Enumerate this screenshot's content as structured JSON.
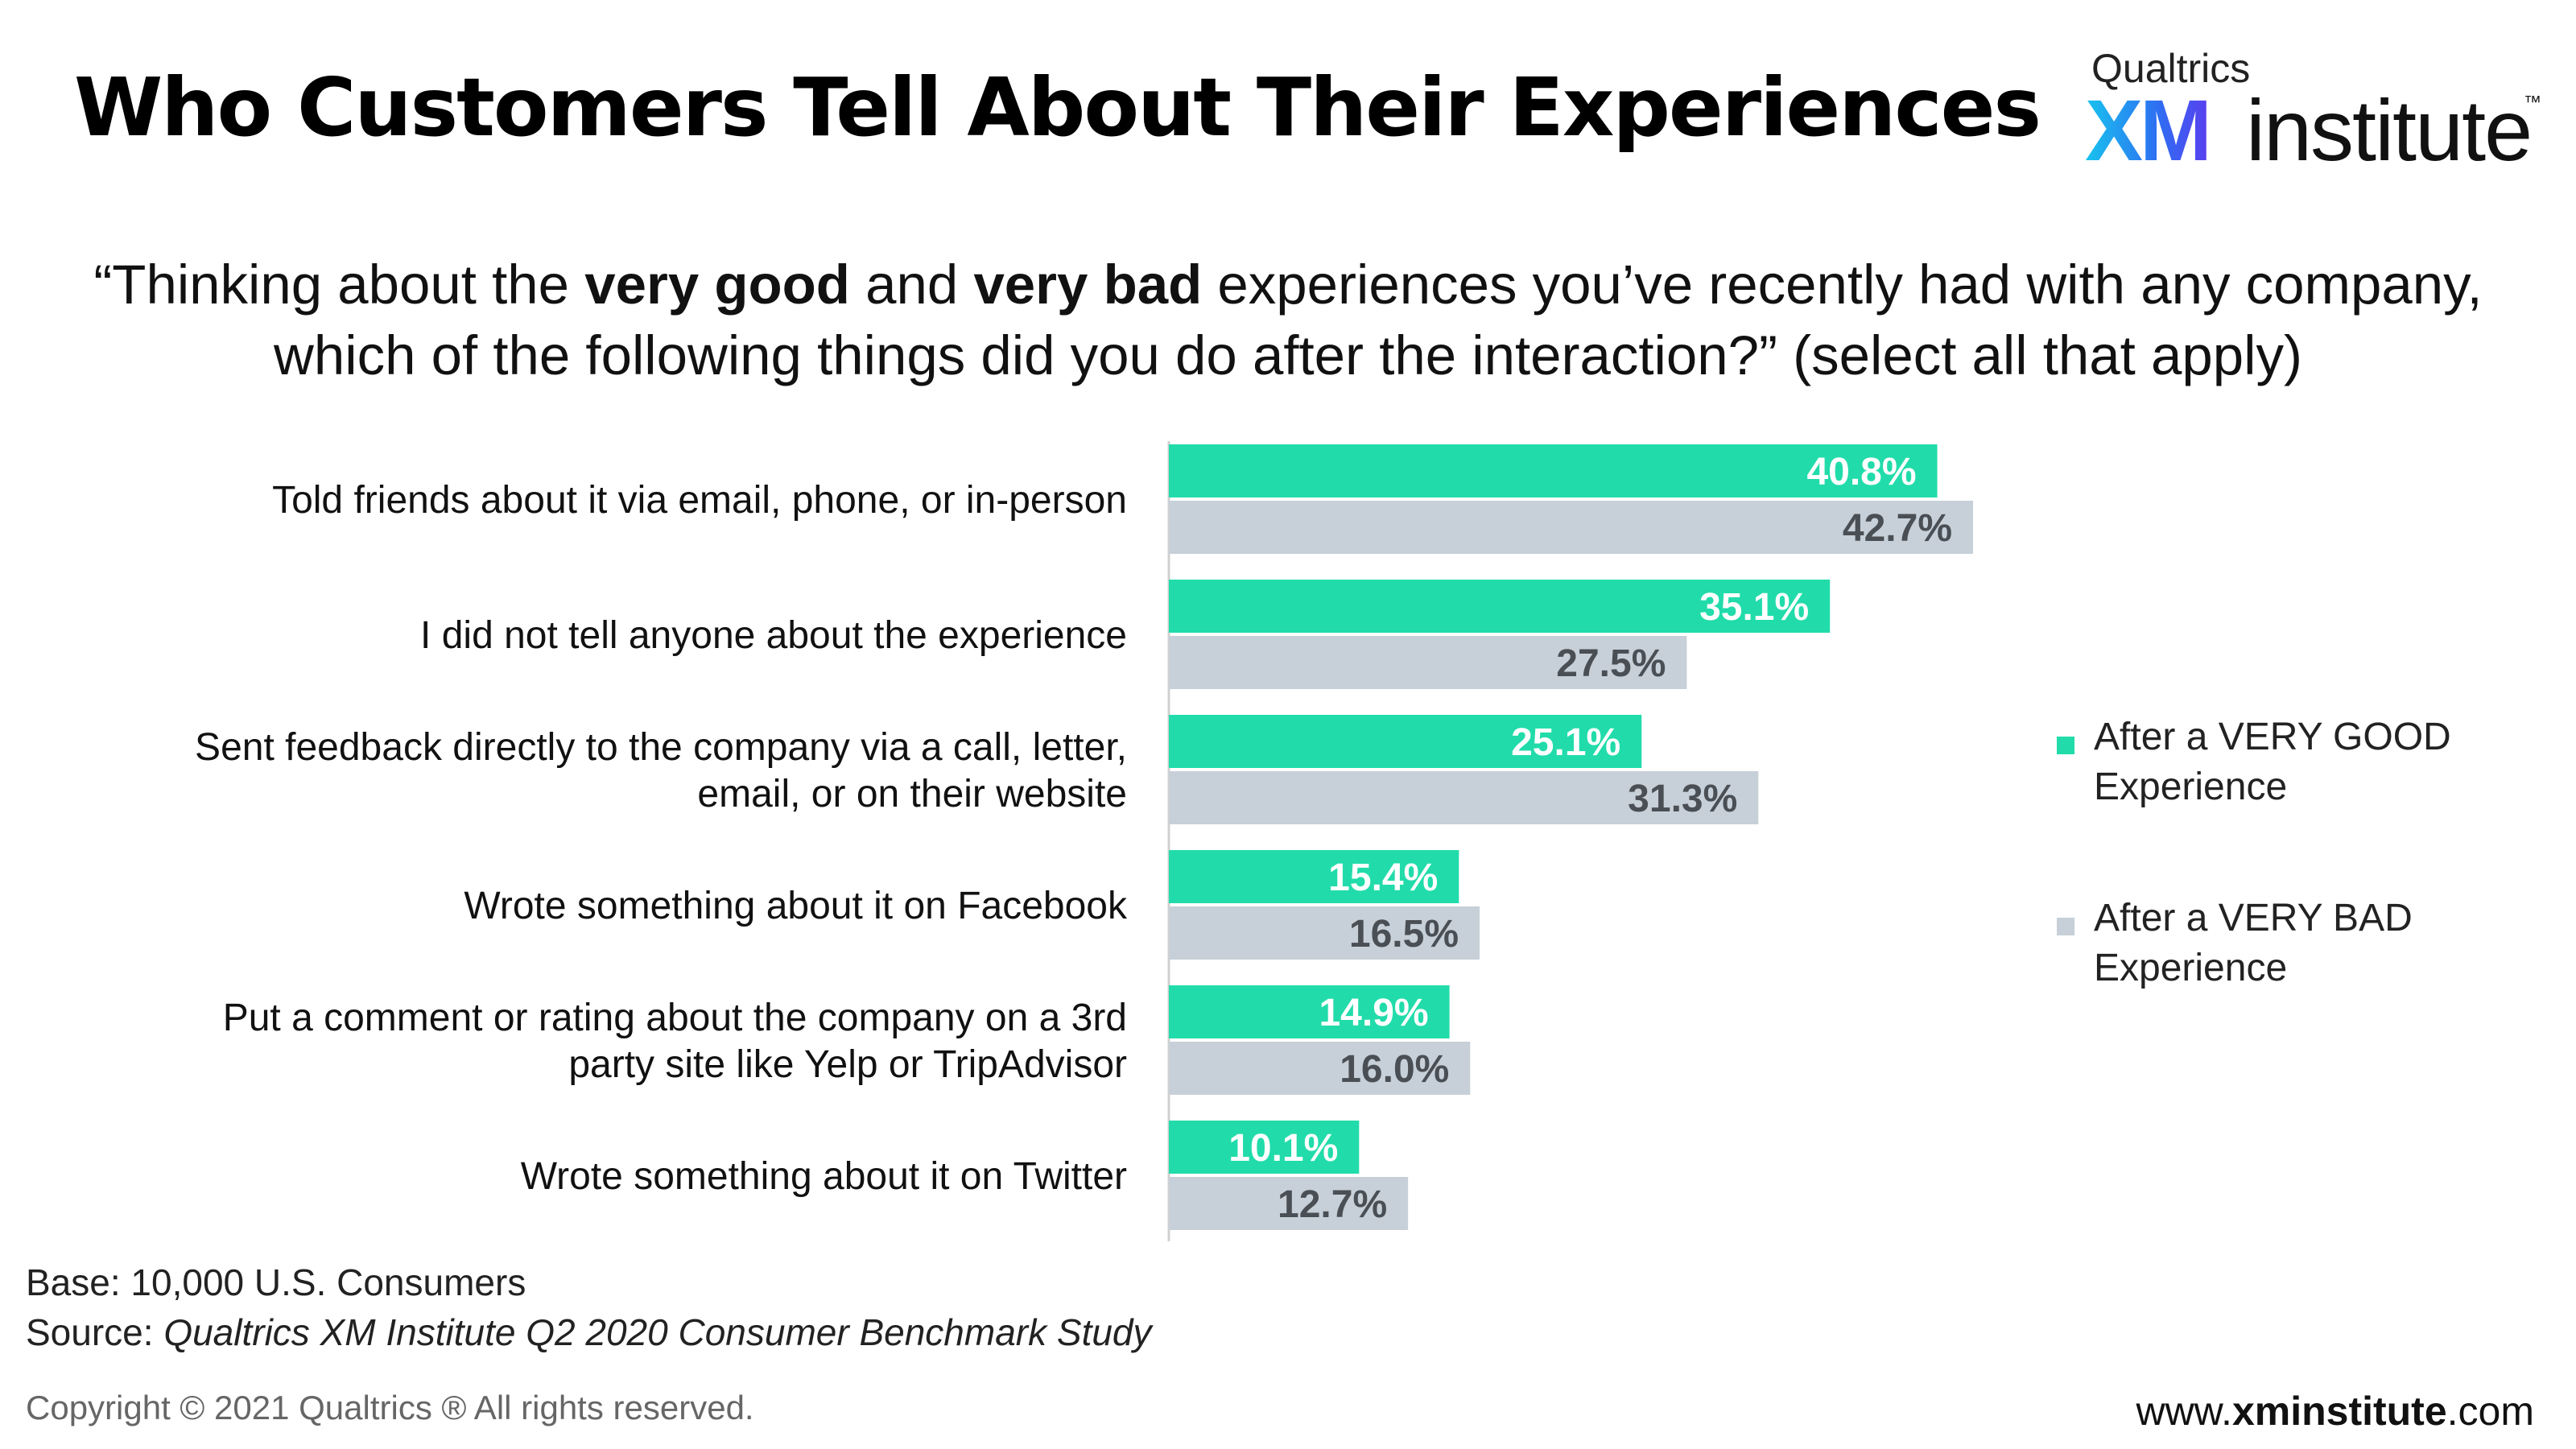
{
  "header": {
    "title": "Who Customers Tell About Their Experiences",
    "logo": {
      "brand_small": "Qualtrics",
      "brand_xm": "XM",
      "brand_institute": "institute",
      "tm": "™"
    }
  },
  "question": {
    "open": "“Thinking about the ",
    "bold1": "very good",
    "mid1": " and ",
    "bold2": "very bad",
    "rest": " experiences you’ve recently had with any company, which of the following things did you do after the interaction?” (select all that apply)"
  },
  "chart_data": {
    "type": "bar",
    "orientation": "horizontal",
    "categories": [
      [
        "Told friends about it via email, phone, or in-person"
      ],
      [
        "I did not tell anyone about the experience"
      ],
      [
        "Sent feedback directly to the company via a call, letter,",
        "email, or on their website"
      ],
      [
        "Wrote something about it on Facebook"
      ],
      [
        "Put a comment or rating about the company on a 3rd",
        "party site like Yelp or TripAdvisor"
      ],
      [
        "Wrote something about it on Twitter"
      ]
    ],
    "series": [
      {
        "name": "After a VERY GOOD Experience",
        "color": "#21dcaa",
        "label_color": "#ffffff",
        "values": [
          40.8,
          35.1,
          25.1,
          15.4,
          14.9,
          10.1
        ],
        "labels": [
          "40.8%",
          "35.1%",
          "25.1%",
          "15.4%",
          "14.9%",
          "10.1%"
        ]
      },
      {
        "name": "After a VERY BAD Experience",
        "color": "#c7d0d8",
        "label_color": "#4a4f55",
        "values": [
          42.7,
          27.5,
          31.3,
          16.5,
          16.0,
          12.7
        ],
        "labels": [
          "42.7%",
          "27.5%",
          "31.3%",
          "16.5%",
          "16.0%",
          "12.7%"
        ]
      }
    ],
    "xlim": [
      0,
      50
    ],
    "legend": {
      "placement": "right",
      "items": [
        {
          "lines": [
            "After a VERY GOOD",
            "Experience"
          ],
          "color": "#21dcaa"
        },
        {
          "lines": [
            "After a VERY BAD",
            "Experience"
          ],
          "color": "#c7d0d8"
        }
      ]
    },
    "grid": false
  },
  "footer": {
    "base": "Base: 10,000 U.S. Consumers",
    "source_prefix": "Source: ",
    "source_title": "Qualtrics XM Institute Q2 2020 Consumer Benchmark Study",
    "copyright": "Copyright © 2021 Qualtrics ® All rights reserved.",
    "website_prefix": "www.",
    "website_bold": "xminstitute",
    "website_suffix": ".com"
  }
}
